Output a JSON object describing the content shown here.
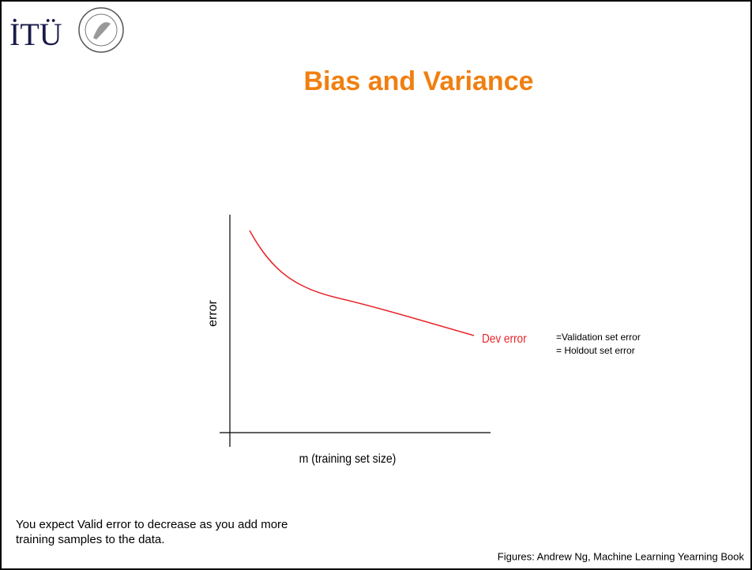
{
  "header": {
    "logo": "İTÜ",
    "title": "Bias and Variance"
  },
  "figure": {
    "y_label": "error",
    "x_label": "m (training set size)",
    "curve_label": "Dev error"
  },
  "notes": [
    "=Validation set error",
    "= Holdout set error"
  ],
  "body": [
    "You expect Valid error to decrease as you add more",
    "training samples to the data."
  ],
  "footer": "Figures: Andrew Ng, Machine Learning Yearning Book"
}
